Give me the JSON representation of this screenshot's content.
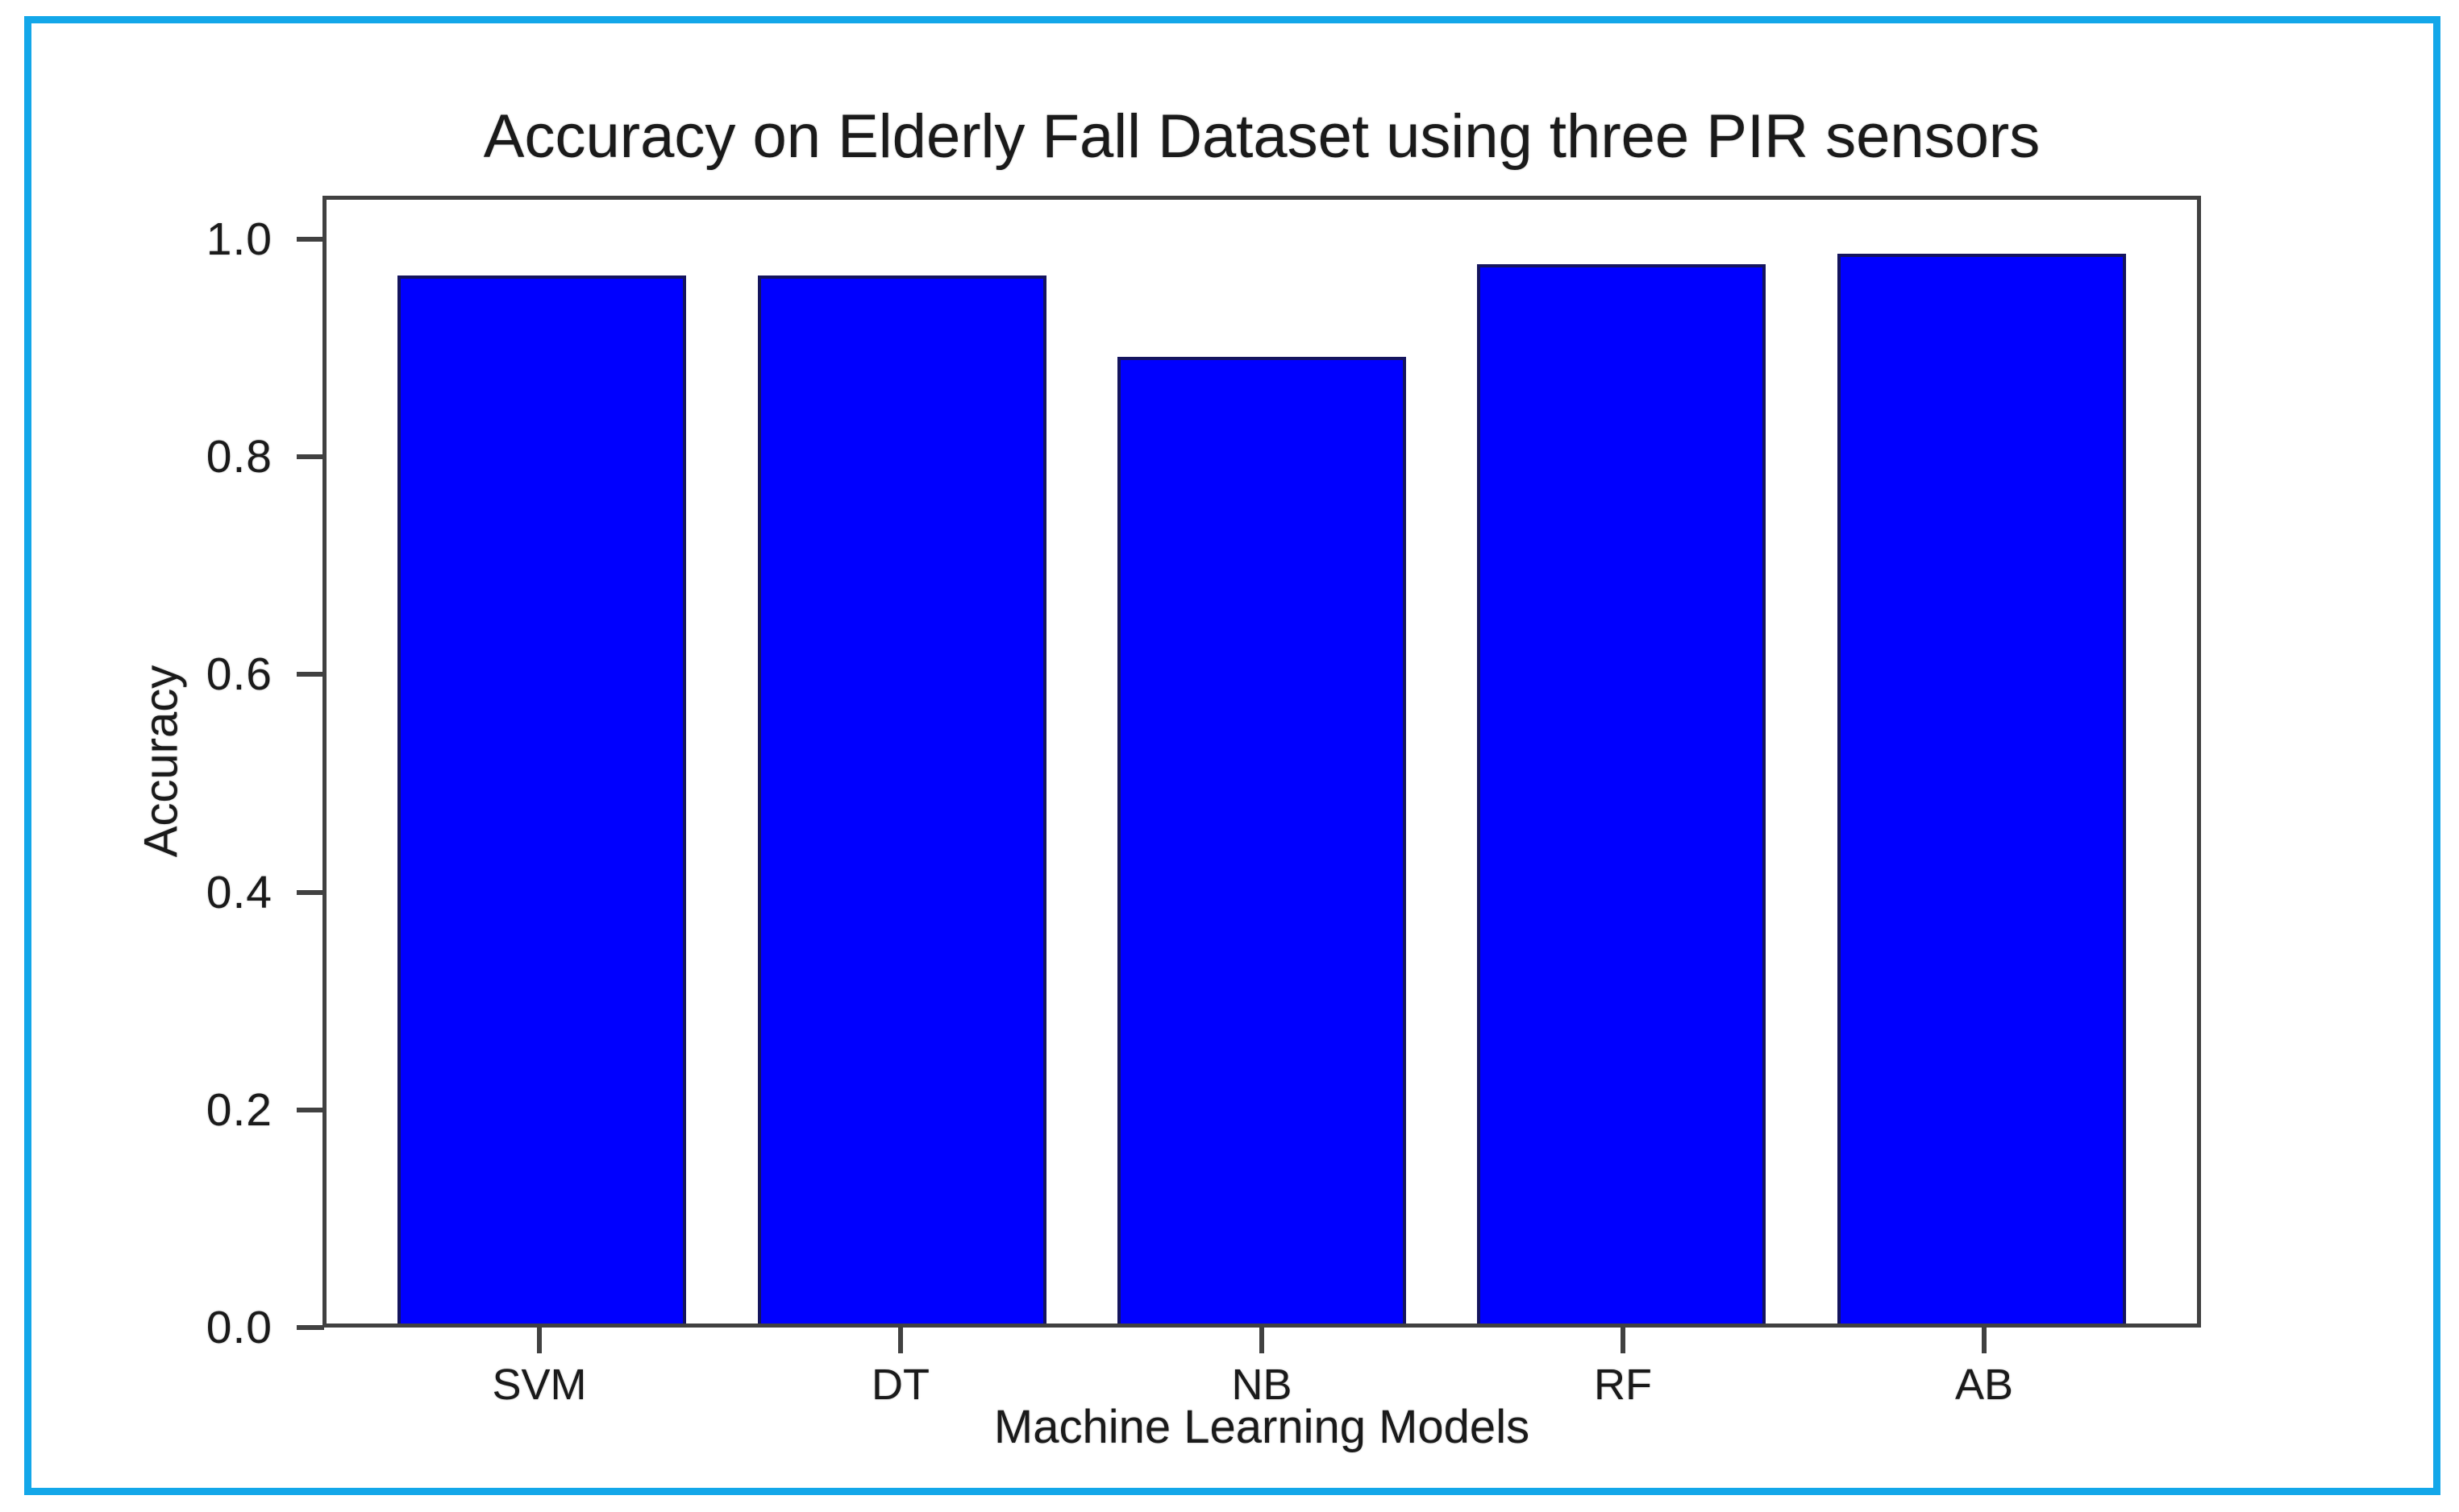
{
  "figure": {
    "frame_color": "#13a7e9",
    "background_color": "#ffffff",
    "axis_color": "#414141",
    "text_color": "#1a1a1a"
  },
  "chart_data": {
    "type": "bar",
    "title": "Accuracy on Elderly Fall Dataset using three PIR sensors",
    "xlabel": "Machine Learning Models",
    "ylabel": "Accuracy",
    "categories": [
      "SVM",
      "DT",
      "NB",
      "RF",
      "AB"
    ],
    "values": [
      0.97,
      0.97,
      0.895,
      0.98,
      0.99
    ],
    "ylim": [
      0,
      1.04
    ],
    "yticks": [
      "0.0",
      "0.2",
      "0.4",
      "0.6",
      "0.8",
      "1.0"
    ],
    "bar_color": "#0000ff",
    "bar_edge_color": "#14145e",
    "grid": false,
    "legend_position": "none"
  }
}
